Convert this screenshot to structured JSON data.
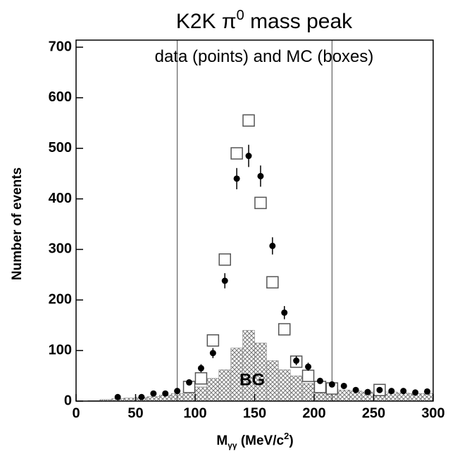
{
  "chart_data": {
    "type": "scatter",
    "title": {
      "text": "K2K π",
      "sup": "0",
      "rest": " mass peak"
    },
    "annotations": [
      {
        "text": "data (points) and MC (boxes)"
      },
      {
        "text": "BG",
        "x": 148,
        "y": 40
      }
    ],
    "x_label": {
      "text": "M",
      "sub": "γγ",
      "rest": " (MeV/c",
      "sup": "2",
      "end": ")"
    },
    "y_label": "Number of events",
    "xlim": [
      0,
      300
    ],
    "ylim": [
      0,
      714
    ],
    "xticks": [
      0,
      50,
      100,
      150,
      200,
      250,
      300
    ],
    "yticks": [
      0,
      100,
      200,
      300,
      400,
      500,
      600,
      700
    ],
    "vlines": [
      85,
      215
    ],
    "background": {
      "name": "BG",
      "color": "#888888",
      "bins": [
        0,
        10,
        20,
        30,
        40,
        50,
        60,
        70,
        80,
        90,
        100,
        110,
        120,
        130,
        140,
        150,
        160,
        170,
        180,
        190,
        200,
        210,
        220,
        230,
        240,
        250,
        260,
        270,
        280,
        290,
        300
      ],
      "counts": [
        0,
        1,
        3,
        5,
        6,
        8,
        9,
        12,
        15,
        20,
        28,
        45,
        62,
        105,
        140,
        115,
        80,
        62,
        50,
        35,
        28,
        25,
        22,
        20,
        18,
        20,
        18,
        16,
        15,
        15
      ]
    },
    "mc": {
      "name": "MC",
      "color": "#555555",
      "x": [
        95,
        105,
        115,
        125,
        135,
        145,
        155,
        165,
        175,
        185,
        195,
        205,
        215,
        255
      ],
      "values": [
        28,
        45,
        120,
        280,
        490,
        555,
        392,
        235,
        142,
        78,
        50,
        28,
        25,
        22
      ]
    },
    "series": [
      {
        "name": "data",
        "color": "#000000",
        "x": [
          35,
          55,
          65,
          75,
          85,
          95,
          105,
          115,
          125,
          135,
          145,
          155,
          165,
          175,
          185,
          195,
          205,
          215,
          225,
          235,
          245,
          255,
          265,
          275,
          285,
          295
        ],
        "values": [
          8,
          8,
          15,
          15,
          20,
          37,
          65,
          95,
          238,
          440,
          485,
          445,
          307,
          175,
          80,
          68,
          40,
          33,
          30,
          22,
          18,
          22,
          20,
          20,
          17,
          19
        ],
        "errors": [
          3,
          3,
          4,
          4,
          4,
          6,
          8,
          10,
          15,
          21,
          22,
          21,
          17,
          13,
          9,
          8,
          6,
          6,
          5,
          5,
          4,
          5,
          4,
          4,
          4,
          4
        ]
      }
    ]
  }
}
